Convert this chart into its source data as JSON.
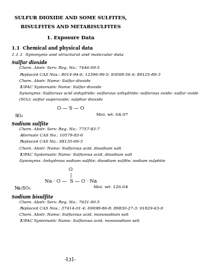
{
  "bg_color": "#ffffff",
  "title_line1": "SULFUR DIOXIDE AND SOME SULFITES,",
  "title_line2": "BISULFITES AND METABISULFITES",
  "section_title": "1. Exposure Data",
  "heading1": "1.1  Chemical and physical data",
  "heading2": "1.1.1  Synonyms and structural and molecular data",
  "sub1": "Sulfur dioxide",
  "sub1_lines": [
    "Chem. Abstr. Serv. Reg. No.: 7446-09-5",
    "Replaced CAS Nos.: 8014-94-6; 12396-99-5; 83008-56-4; 89125-89-3",
    "Chem. Abstr. Name: Sulfur dioxide",
    "IUPAC Systematic Name: Sulfur dioxide",
    "Synonyms: Sulfurous acid anhydride; sulfurous anhydride; sulfurous oxide; sulfur oxide",
    "(SO₂); sulfur superoxide; sulphur dioxide"
  ],
  "so2_formula": "O — S — O",
  "so2_symbol": "SO₂",
  "so2_molwt": "Mol. wt: 64.07",
  "sub2": "Sodium sulfite",
  "sub2_lines": [
    "Chem. Abstr. Serv. Reg. No.: 7757-83-7",
    "Alternate CAS No.: 10579-83-6",
    "Replaced CAS No.: 68135-69-3",
    "Chem. Abstr. Name: Sulfurous acid, disodium salt",
    "IUPAC Systematic Name: Sulfurous acid, disodium salt",
    "Synonyms: Anhydrous sodium sulfite; disodium sulfite; sodium sulphite"
  ],
  "na2so3_formula_top": "O",
  "na2so3_formula_mid": "|",
  "na2so3_formula_bot": "Na · O —  S — O · Na",
  "na2so3_symbol": "Na₂SO₃",
  "na2so3_molwt": "Mol. wt: 126.04",
  "sub3": "Sodium bisulfite",
  "sub3_lines": [
    "Chem. Abstr. Serv. Reg. No.: 7631-90-5",
    "Replaced CAS Nos.: 37414-01-4; 69098-86-8; 89830-27-3; 91829-63-9",
    "Chem. Abstr. Name: Sulfurous acid, monosodium salt",
    "IUPAC Systematic Name: Sulfurous acid, monosodium salt"
  ],
  "page_num": "-131-"
}
